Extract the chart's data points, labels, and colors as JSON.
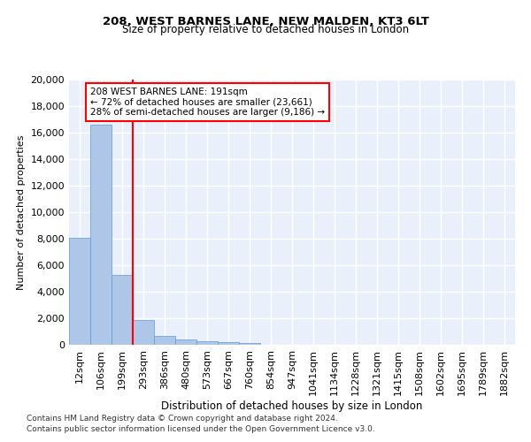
{
  "title": "208, WEST BARNES LANE, NEW MALDEN, KT3 6LT",
  "subtitle": "Size of property relative to detached houses in London",
  "xlabel": "Distribution of detached houses by size in London",
  "ylabel": "Number of detached properties",
  "categories": [
    "12sqm",
    "106sqm",
    "199sqm",
    "293sqm",
    "386sqm",
    "480sqm",
    "573sqm",
    "667sqm",
    "760sqm",
    "854sqm",
    "947sqm",
    "1041sqm",
    "1134sqm",
    "1228sqm",
    "1321sqm",
    "1415sqm",
    "1508sqm",
    "1602sqm",
    "1695sqm",
    "1789sqm",
    "1882sqm"
  ],
  "values": [
    8100,
    16600,
    5300,
    1850,
    700,
    380,
    280,
    200,
    150,
    0,
    0,
    0,
    0,
    0,
    0,
    0,
    0,
    0,
    0,
    0,
    0
  ],
  "bar_color": "#aec6e8",
  "bar_edge_color": "#5b9bd5",
  "vline_index": 2,
  "vline_color": "#ff0000",
  "annotation_text": "208 WEST BARNES LANE: 191sqm\n← 72% of detached houses are smaller (23,661)\n28% of semi-detached houses are larger (9,186) →",
  "ylim": [
    0,
    20000
  ],
  "yticks": [
    0,
    2000,
    4000,
    6000,
    8000,
    10000,
    12000,
    14000,
    16000,
    18000,
    20000
  ],
  "footer_line1": "Contains HM Land Registry data © Crown copyright and database right 2024.",
  "footer_line2": "Contains public sector information licensed under the Open Government Licence v3.0.",
  "bg_color": "#eaf0fb",
  "grid_color": "#ffffff"
}
